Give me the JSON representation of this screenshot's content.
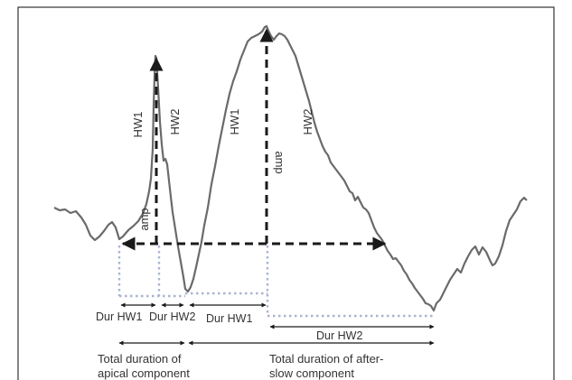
{
  "labels": {
    "hw1_apical": "HW1",
    "hw2_apical": "HW2",
    "amp_apical": "amp",
    "hw1_slow": "HW1",
    "hw2_slow": "HW2",
    "amp_slow": "amp",
    "dur_hw1_apical": "Dur HW1",
    "dur_hw2_apical": "Dur HW2",
    "dur_hw1_slow": "Dur HW1",
    "dur_hw2_slow": "Dur HW2",
    "total_apical_line1": "Total duration of",
    "total_apical_line2": "apical component",
    "total_slow_line1": "Total duration of after-",
    "total_slow_line2": "slow  component"
  },
  "colors": {
    "trace": "#6a6a6a",
    "arrows": "#1a1a1a",
    "dotted": "#aab4d0",
    "text": "#333333",
    "frame": "#333333"
  }
}
